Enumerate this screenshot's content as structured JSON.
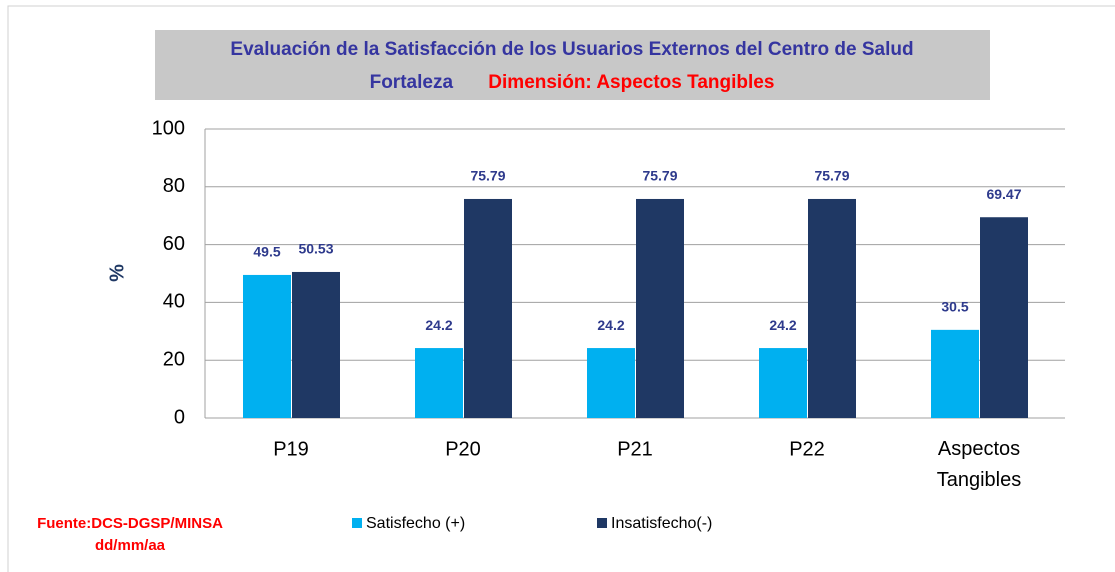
{
  "chart_data": {
    "type": "bar",
    "title": "Evaluación de la Satisfacción de los Usuarios Externos del Centro de Salud",
    "subtitle": "Fortaleza",
    "subtitle_highlight": "Dimensión: Aspectos Tangibles",
    "ylabel": "%",
    "categories": [
      "P19",
      "P20",
      "P21",
      "P22",
      "Aspectos Tangibles"
    ],
    "series": [
      {
        "name": "Satisfecho (+)",
        "color": "#00b0f0",
        "values": [
          49.5,
          24.2,
          24.2,
          24.2,
          30.5
        ]
      },
      {
        "name": "Insatisfecho(-)",
        "color": "#1f3864",
        "values": [
          50.53,
          75.79,
          75.79,
          75.79,
          69.47
        ]
      }
    ],
    "ylim": [
      0,
      100
    ],
    "yticks": [
      0,
      20,
      40,
      60,
      80,
      100
    ],
    "grid": true,
    "legend": "bottom",
    "source": "Fuente:DCS-DGSP/MINSA",
    "date": "dd/mm/aa"
  }
}
